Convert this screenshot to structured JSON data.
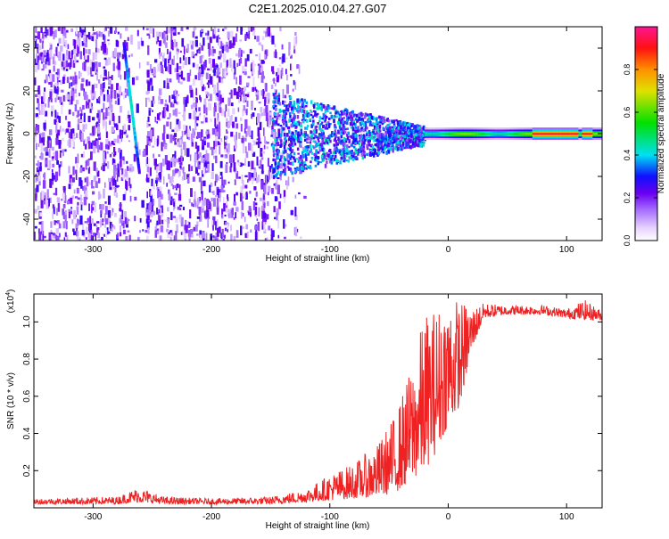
{
  "title": "C2E1.2025.010.04.27.G07",
  "chart_data": [
    {
      "type": "heatmap",
      "xlabel": "Height of straight line (km)",
      "ylabel": "Frequency (Hz)",
      "xlim": [
        -350,
        130
      ],
      "ylim": [
        -50,
        50
      ],
      "xticks": [
        -300,
        -200,
        -100,
        0,
        100
      ],
      "yticks": [
        -40,
        -20,
        0,
        20,
        40
      ],
      "colorbar": {
        "label": "Normalized spectral amplitude",
        "range": [
          0,
          1
        ],
        "ticks": [
          "0.0",
          "0.2",
          "0.4",
          "0.6",
          "0.8"
        ],
        "colormap": [
          "#ffffff",
          "#e6d2ff",
          "#a064ff",
          "#6a00f0",
          "#1010ff",
          "#00e0f0",
          "#00e000",
          "#e0e000",
          "#ff9000",
          "#ff1010",
          "#ff1493"
        ]
      },
      "features": {
        "noise_region_x": [
          -350,
          -130
        ],
        "transition_region_x": [
          -150,
          -20
        ],
        "signal_line_freq": 0,
        "signal_line_x": [
          -20,
          130
        ],
        "diagonal_streak": {
          "x": [
            -275,
            -262
          ],
          "y": [
            42,
            -18
          ]
        },
        "peak_amplitude_x": [
          70,
          110
        ]
      }
    },
    {
      "type": "line",
      "xlabel": "Height of straight line (km)",
      "ylabel": "SNR (10 * v/v)",
      "multiplier": "(x10",
      "multiplier_exp": "4",
      "xlim": [
        -350,
        130
      ],
      "ylim": [
        0,
        1.15
      ],
      "xticks": [
        -300,
        -200,
        -100,
        0,
        100
      ],
      "yticks": [
        "0.2",
        "0.4",
        "0.6",
        "0.8",
        "1.0"
      ],
      "color": "#ee2222",
      "envelope": [
        {
          "x": -350,
          "lo": 0.02,
          "hi": 0.05
        },
        {
          "x": -280,
          "lo": 0.02,
          "hi": 0.06
        },
        {
          "x": -262,
          "lo": 0.03,
          "hi": 0.11
        },
        {
          "x": -240,
          "lo": 0.02,
          "hi": 0.06
        },
        {
          "x": -200,
          "lo": 0.02,
          "hi": 0.05
        },
        {
          "x": -150,
          "lo": 0.02,
          "hi": 0.06
        },
        {
          "x": -120,
          "lo": 0.03,
          "hi": 0.1
        },
        {
          "x": -100,
          "lo": 0.04,
          "hi": 0.18
        },
        {
          "x": -80,
          "lo": 0.05,
          "hi": 0.24
        },
        {
          "x": -60,
          "lo": 0.06,
          "hi": 0.34
        },
        {
          "x": -45,
          "lo": 0.08,
          "hi": 0.5
        },
        {
          "x": -30,
          "lo": 0.15,
          "hi": 0.78
        },
        {
          "x": -20,
          "lo": 0.2,
          "hi": 1.05
        },
        {
          "x": -10,
          "lo": 0.3,
          "hi": 1.08
        },
        {
          "x": 0,
          "lo": 0.45,
          "hi": 1.15
        },
        {
          "x": 10,
          "lo": 0.55,
          "hi": 1.12
        },
        {
          "x": 20,
          "lo": 0.85,
          "hi": 1.08
        },
        {
          "x": 30,
          "lo": 1.02,
          "hi": 1.1
        },
        {
          "x": 50,
          "lo": 1.04,
          "hi": 1.09
        },
        {
          "x": 80,
          "lo": 1.04,
          "hi": 1.09
        },
        {
          "x": 100,
          "lo": 1.02,
          "hi": 1.07
        },
        {
          "x": 115,
          "lo": 1.01,
          "hi": 1.12
        },
        {
          "x": 130,
          "lo": 1.01,
          "hi": 1.06
        }
      ]
    }
  ]
}
